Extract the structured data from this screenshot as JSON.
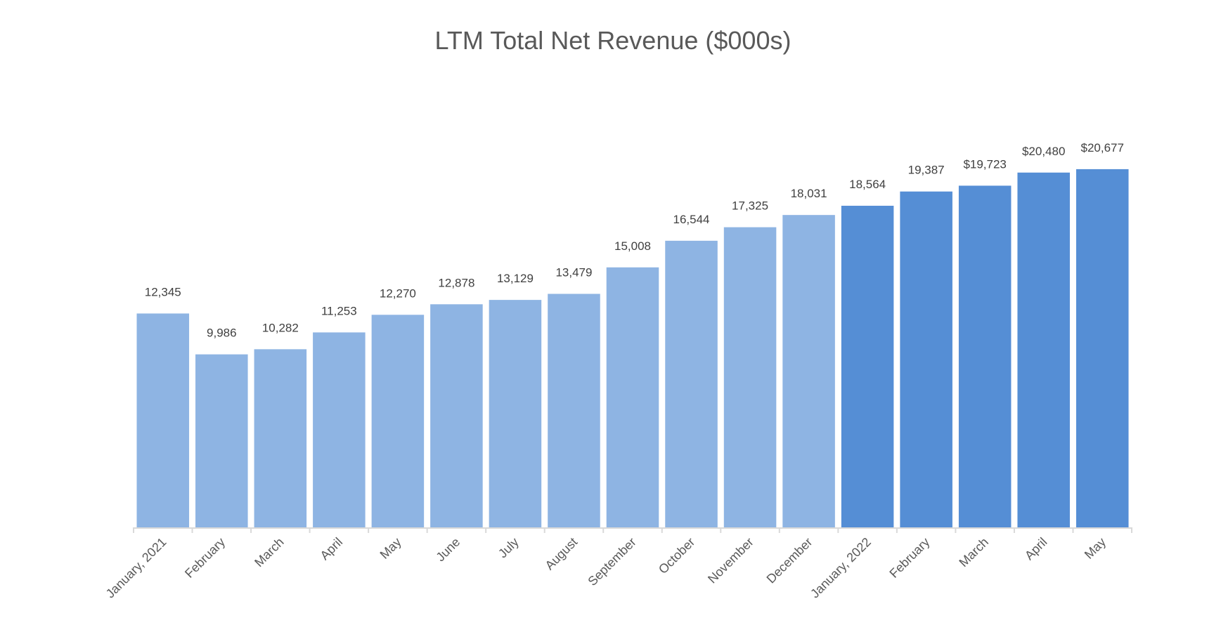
{
  "chart_data": {
    "type": "bar",
    "title": "LTM Total Net Revenue ($000s)",
    "xlabel": "",
    "ylabel": "",
    "ylim": [
      0,
      23000
    ],
    "grid": false,
    "legend": "none",
    "categories": [
      "January, 2021",
      "February",
      "March",
      "April",
      "May",
      "June",
      "July",
      "August",
      "September",
      "October",
      "November",
      "December",
      "January, 2022",
      "February",
      "March",
      "April",
      "May"
    ],
    "values": [
      12345,
      9986,
      10282,
      11253,
      12270,
      12878,
      13129,
      13479,
      15008,
      16544,
      17325,
      18031,
      18564,
      19387,
      19723,
      20480,
      20677
    ],
    "data_labels": [
      "12,345",
      "9,986",
      "10,282",
      "11,253",
      "12,270",
      "12,878",
      "13,129",
      "13,479",
      "15,008",
      "16,544",
      "17,325",
      "18,031",
      "18,564",
      "19,387",
      "$19,723",
      "$20,480",
      "$20,677"
    ],
    "bar_colors": [
      "#8EB4E3",
      "#8EB4E3",
      "#8EB4E3",
      "#8EB4E3",
      "#8EB4E3",
      "#8EB4E3",
      "#8EB4E3",
      "#8EB4E3",
      "#8EB4E3",
      "#8EB4E3",
      "#8EB4E3",
      "#8EB4E3",
      "#558ED5",
      "#558ED5",
      "#558ED5",
      "#558ED5",
      "#558ED5"
    ],
    "axis_color": "#D9D9D9"
  }
}
